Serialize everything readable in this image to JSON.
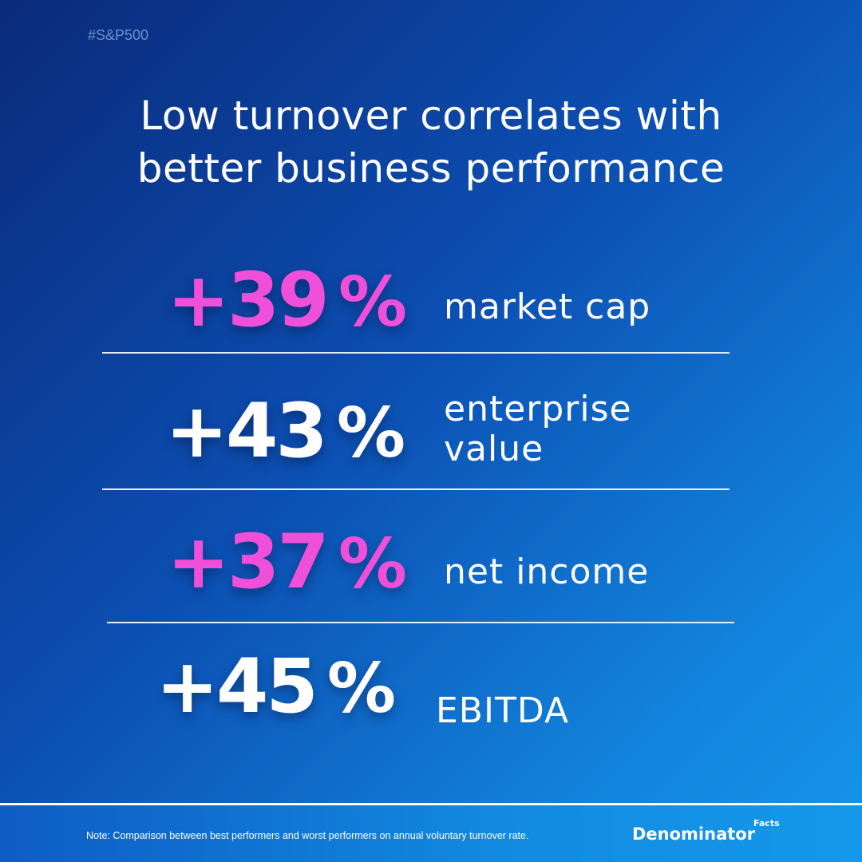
{
  "hashtag": "#S&P500",
  "title": {
    "line1": "Low turnover correlates with",
    "line2": "better business performance"
  },
  "stats": [
    {
      "value": "+39",
      "unit": "%",
      "label_line1": "market cap",
      "label_line2": "",
      "color": "#ef4fd9"
    },
    {
      "value": "+43",
      "unit": "%",
      "label_line1": "enterprise",
      "label_line2": "value",
      "color": "#ffffff"
    },
    {
      "value": "+37",
      "unit": "%",
      "label_line1": "net income",
      "label_line2": "",
      "color": "#ef4fd9"
    },
    {
      "value": "+45",
      "unit": "%",
      "label_line1": "EBITDA",
      "label_line2": "",
      "color": "#ffffff"
    }
  ],
  "footer": {
    "note": "Note: Comparison between best performers and worst performers on annual voluntary turnover rate.",
    "brand": "Denominator",
    "brand_sup": "Facts"
  },
  "colors": {
    "accent_pink": "#ef4fd9",
    "background_dark": "#0a2a7a",
    "background_light": "#1596ea"
  }
}
